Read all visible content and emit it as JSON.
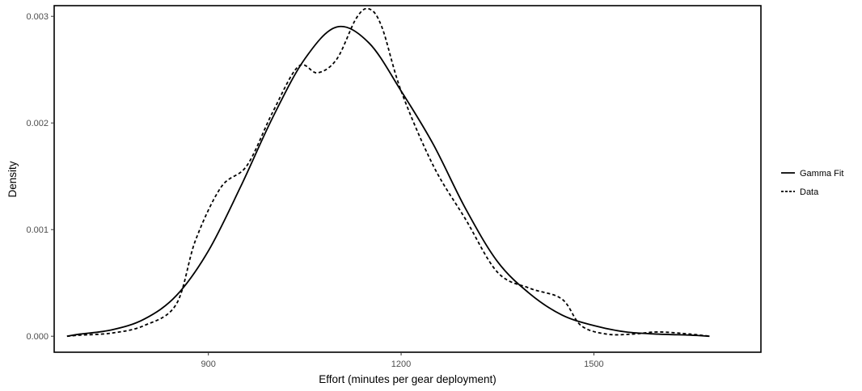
{
  "chart_data": {
    "type": "line",
    "title": "",
    "xlabel": "Effort (minutes per gear deployment)",
    "ylabel": "Density",
    "xlim": [
      660,
      1760
    ],
    "ylim": [
      -0.00015,
      0.0031
    ],
    "x_ticks": [
      900,
      1200,
      1500
    ],
    "x_tick_labels": [
      "900",
      "1200",
      "1500"
    ],
    "y_ticks": [
      0.0,
      0.001,
      0.002,
      0.003
    ],
    "y_tick_labels": [
      "0.000",
      "0.001",
      "0.002",
      "0.003"
    ],
    "grid": false,
    "legend_position": "right",
    "series": [
      {
        "name": "Gamma Fit",
        "line_style": "solid",
        "color": "#000000",
        "x": [
          680,
          700,
          750,
          800,
          850,
          900,
          950,
          1000,
          1050,
          1100,
          1150,
          1200,
          1250,
          1300,
          1350,
          1400,
          1450,
          1500,
          1550,
          1600,
          1650,
          1680
        ],
        "y": [
          0.0,
          2e-05,
          6e-05,
          0.00016,
          0.00038,
          0.0008,
          0.0014,
          0.00205,
          0.0026,
          0.0029,
          0.00275,
          0.0023,
          0.0018,
          0.0012,
          0.0007,
          0.0004,
          0.0002,
          0.0001,
          4e-05,
          2e-05,
          1e-05,
          0.0
        ]
      },
      {
        "name": "Data",
        "line_style": "dashed",
        "color": "#000000",
        "x": [
          680,
          700,
          750,
          800,
          850,
          880,
          920,
          960,
          1000,
          1040,
          1070,
          1100,
          1130,
          1150,
          1170,
          1200,
          1250,
          1300,
          1350,
          1400,
          1450,
          1480,
          1520,
          1560,
          1600,
          1650,
          1680
        ],
        "y": [
          0.0,
          1e-05,
          3e-05,
          0.0001,
          0.0003,
          0.0009,
          0.0014,
          0.0016,
          0.0021,
          0.00253,
          0.00247,
          0.0026,
          0.00298,
          0.00307,
          0.0029,
          0.0023,
          0.0016,
          0.0011,
          0.0006,
          0.00045,
          0.00035,
          0.0001,
          2e-05,
          2e-05,
          4e-05,
          2e-05,
          0.0
        ]
      }
    ]
  }
}
